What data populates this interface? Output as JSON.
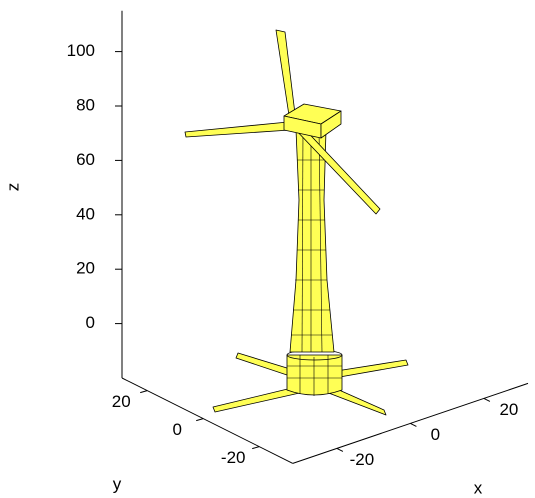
{
  "chart_data": {
    "type": "surface",
    "xlabel": "x",
    "ylabel": "y",
    "zlabel": "z",
    "xlim": [
      -32,
      32
    ],
    "ylim": [
      -32,
      29
    ],
    "zlim": [
      -20,
      115
    ],
    "xticks": [
      -20,
      0,
      20
    ],
    "yticks": [
      -20,
      0,
      20
    ],
    "zticks": [
      0,
      20,
      40,
      60,
      80,
      100
    ],
    "color": "#ffff55"
  }
}
